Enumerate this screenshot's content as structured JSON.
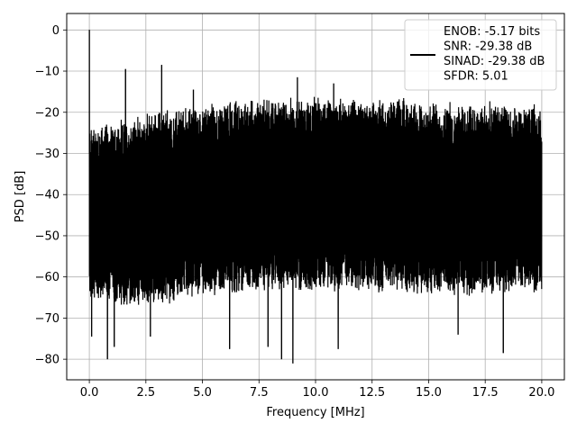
{
  "chart_data": {
    "type": "line",
    "title": "",
    "xlabel": "Frequency [MHz]",
    "ylabel": "PSD [dB]",
    "xlim": [
      -1.0,
      21.0
    ],
    "ylim": [
      -85,
      4
    ],
    "x_ticks": [
      0.0,
      2.5,
      5.0,
      7.5,
      10.0,
      12.5,
      15.0,
      17.5,
      20.0
    ],
    "x_tick_labels": [
      "0.0",
      "2.5",
      "5.0",
      "7.5",
      "10.0",
      "12.5",
      "15.0",
      "17.5",
      "20.0"
    ],
    "y_ticks": [
      0,
      -10,
      -20,
      -30,
      -40,
      -50,
      -60,
      -70,
      -80
    ],
    "y_tick_labels": [
      "0",
      "−10",
      "−20",
      "−30",
      "−40",
      "−50",
      "−60",
      "−70",
      "−80"
    ],
    "grid": true,
    "legend_position": "top-right",
    "series": [
      {
        "name": "ENOB: -5.17 bits\nSNR: -29.38 dB\nSINAD: -29.38 dB\nSFDR: 5.01",
        "color": "#000000",
        "x_range": [
          0.0,
          20.0
        ],
        "noise_envelope": {
          "upper_db": [
            -24,
            -24,
            -23,
            -21,
            -20,
            -19,
            -18,
            -18,
            -18,
            -18,
            -18,
            -19,
            -19,
            -20
          ],
          "lower_db": [
            -65,
            -65,
            -66,
            -65,
            -64,
            -62,
            -62,
            -62,
            -62,
            -62,
            -62,
            -63,
            -63,
            -62
          ],
          "envelope_x": [
            0.0,
            1.0,
            2.0,
            3.0,
            4.5,
            6.0,
            7.5,
            9.0,
            10.5,
            12.0,
            13.5,
            15.0,
            17.0,
            20.0
          ]
        },
        "peaks": [
          {
            "x": 0.0,
            "y": 0.0
          },
          {
            "x": 1.6,
            "y": -9.5
          },
          {
            "x": 3.2,
            "y": -8.5
          },
          {
            "x": 4.6,
            "y": -14.5
          },
          {
            "x": 9.2,
            "y": -11.5
          },
          {
            "x": 10.8,
            "y": -13.0
          }
        ],
        "dips": [
          {
            "x": 0.1,
            "y": -74.5
          },
          {
            "x": 0.8,
            "y": -80.0
          },
          {
            "x": 1.1,
            "y": -77.0
          },
          {
            "x": 2.7,
            "y": -74.5
          },
          {
            "x": 6.2,
            "y": -77.5
          },
          {
            "x": 7.9,
            "y": -77.0
          },
          {
            "x": 8.5,
            "y": -80.0
          },
          {
            "x": 9.0,
            "y": -81.0
          },
          {
            "x": 11.0,
            "y": -77.5
          },
          {
            "x": 16.3,
            "y": -74.0
          },
          {
            "x": 18.3,
            "y": -78.5
          }
        ]
      }
    ]
  }
}
